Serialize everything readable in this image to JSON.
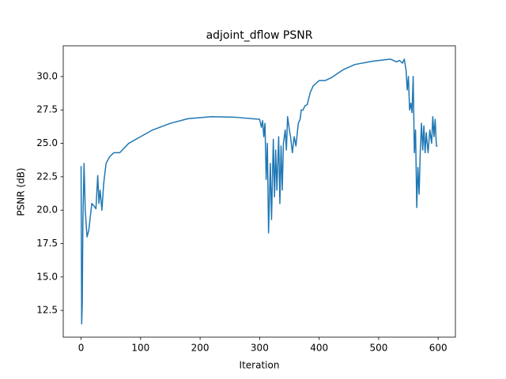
{
  "chart_data": {
    "type": "line",
    "title": "adjoint_dflow PSNR",
    "x_label": "Iteration",
    "y_label": "PSNR (dB)",
    "x": [
      0,
      1,
      2,
      3,
      5,
      7,
      10,
      13,
      18,
      22,
      25,
      28,
      30,
      32,
      35,
      38,
      42,
      48,
      55,
      65,
      80,
      100,
      120,
      150,
      180,
      220,
      260,
      300,
      303,
      305,
      307,
      309,
      311,
      313,
      315,
      318,
      320,
      323,
      325,
      327,
      329,
      332,
      334,
      336,
      338,
      340,
      343,
      345,
      347,
      350,
      352,
      355,
      358,
      361,
      365,
      368,
      370,
      373,
      376,
      380,
      385,
      390,
      400,
      410,
      420,
      440,
      460,
      490,
      520,
      530,
      535,
      540,
      543,
      546,
      548,
      550,
      552,
      554,
      556,
      558,
      560,
      562,
      564,
      566,
      568,
      570,
      572,
      574,
      576,
      578,
      580,
      583,
      586,
      589,
      591,
      593,
      595,
      597,
      599
    ],
    "series": [
      {
        "name": "PSNR",
        "color": "#1f77b4",
        "values": [
          23.3,
          11.5,
          13,
          19,
          23.5,
          20,
          18,
          18.5,
          20.5,
          20.3,
          20.1,
          22.6,
          20.5,
          21.5,
          20.0,
          22,
          23.5,
          24,
          24.3,
          24.3,
          25,
          25.5,
          26,
          26.5,
          26.85,
          27,
          26.95,
          26.8,
          26.2,
          26.7,
          25.5,
          26.5,
          22.3,
          25,
          18.3,
          23.5,
          19.3,
          25.3,
          21,
          24.5,
          21.5,
          25.5,
          20.5,
          24.8,
          21.5,
          25,
          26,
          24.5,
          27,
          26,
          25.5,
          24.3,
          25.5,
          24.8,
          26.5,
          26.8,
          27.5,
          27.5,
          27.8,
          27.9,
          28.8,
          29.3,
          29.7,
          29.7,
          29.9,
          30.5,
          30.9,
          31.15,
          31.3,
          31.1,
          31.2,
          31.0,
          31.3,
          30.5,
          29,
          30,
          27.5,
          28,
          27.3,
          30,
          24.3,
          26,
          20.2,
          23.2,
          21.2,
          24.5,
          26.5,
          24.5,
          26.3,
          24.3,
          25.8,
          24.3,
          26,
          25,
          27,
          25.5,
          26.8,
          24.8,
          24.8
        ]
      }
    ],
    "xlim": [
      -29.95,
      628.95
    ],
    "ylim": [
      10.5,
      32.3
    ],
    "xticks": [
      0,
      100,
      200,
      300,
      400,
      500,
      600
    ],
    "yticks": [
      12.5,
      {
        "value": 15,
        "label": "15.0"
      },
      17.5,
      {
        "value": 20,
        "label": "20.0"
      },
      22.5,
      {
        "value": 25,
        "label": "25.0"
      },
      27.5,
      {
        "value": 30,
        "label": "30.0"
      }
    ],
    "grid": false
  }
}
